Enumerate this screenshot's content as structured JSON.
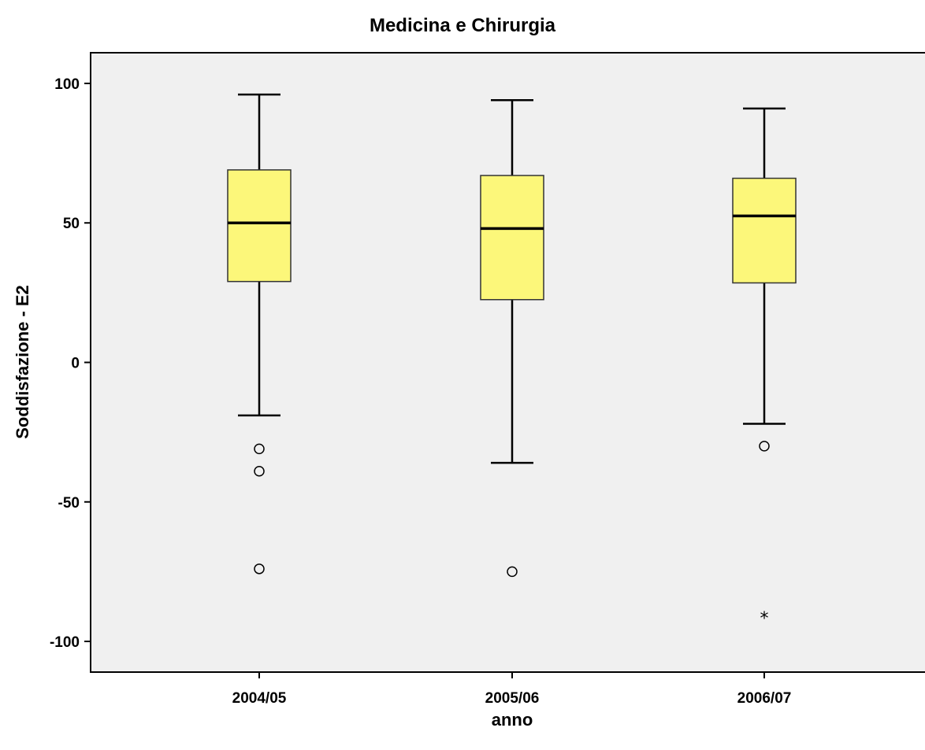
{
  "chart_data": {
    "type": "boxplot",
    "title": "Medicina e Chirurgia",
    "xlabel": "anno",
    "ylabel": "Soddisfazione - E2",
    "ylim": [
      -111,
      111
    ],
    "yticks": [
      "100",
      "50",
      "0",
      "-50",
      "-100"
    ],
    "ytick_values": [
      100,
      50,
      0,
      -50,
      -100
    ],
    "categories": [
      "2004/05",
      "2005/06",
      "2006/07"
    ],
    "boxes": [
      {
        "category": "2004/05",
        "whisker_low": -19,
        "q1": 29,
        "median": 50,
        "q3": 69,
        "whisker_high": 96,
        "outliers": [
          -31,
          -39,
          -74
        ],
        "extremes": []
      },
      {
        "category": "2005/06",
        "whisker_low": -36,
        "q1": 22.5,
        "median": 48,
        "q3": 67,
        "whisker_high": 94,
        "outliers": [
          -75
        ],
        "extremes": []
      },
      {
        "category": "2006/07",
        "whisker_low": -22,
        "q1": 28.5,
        "median": 52.5,
        "q3": 66,
        "whisker_high": 91,
        "outliers": [
          -30
        ],
        "extremes": [
          -91
        ]
      }
    ],
    "grid": false,
    "colors": {
      "box_fill": "#fcf77a",
      "plot_bg": "#f0f0f0",
      "line": "#000000"
    }
  }
}
